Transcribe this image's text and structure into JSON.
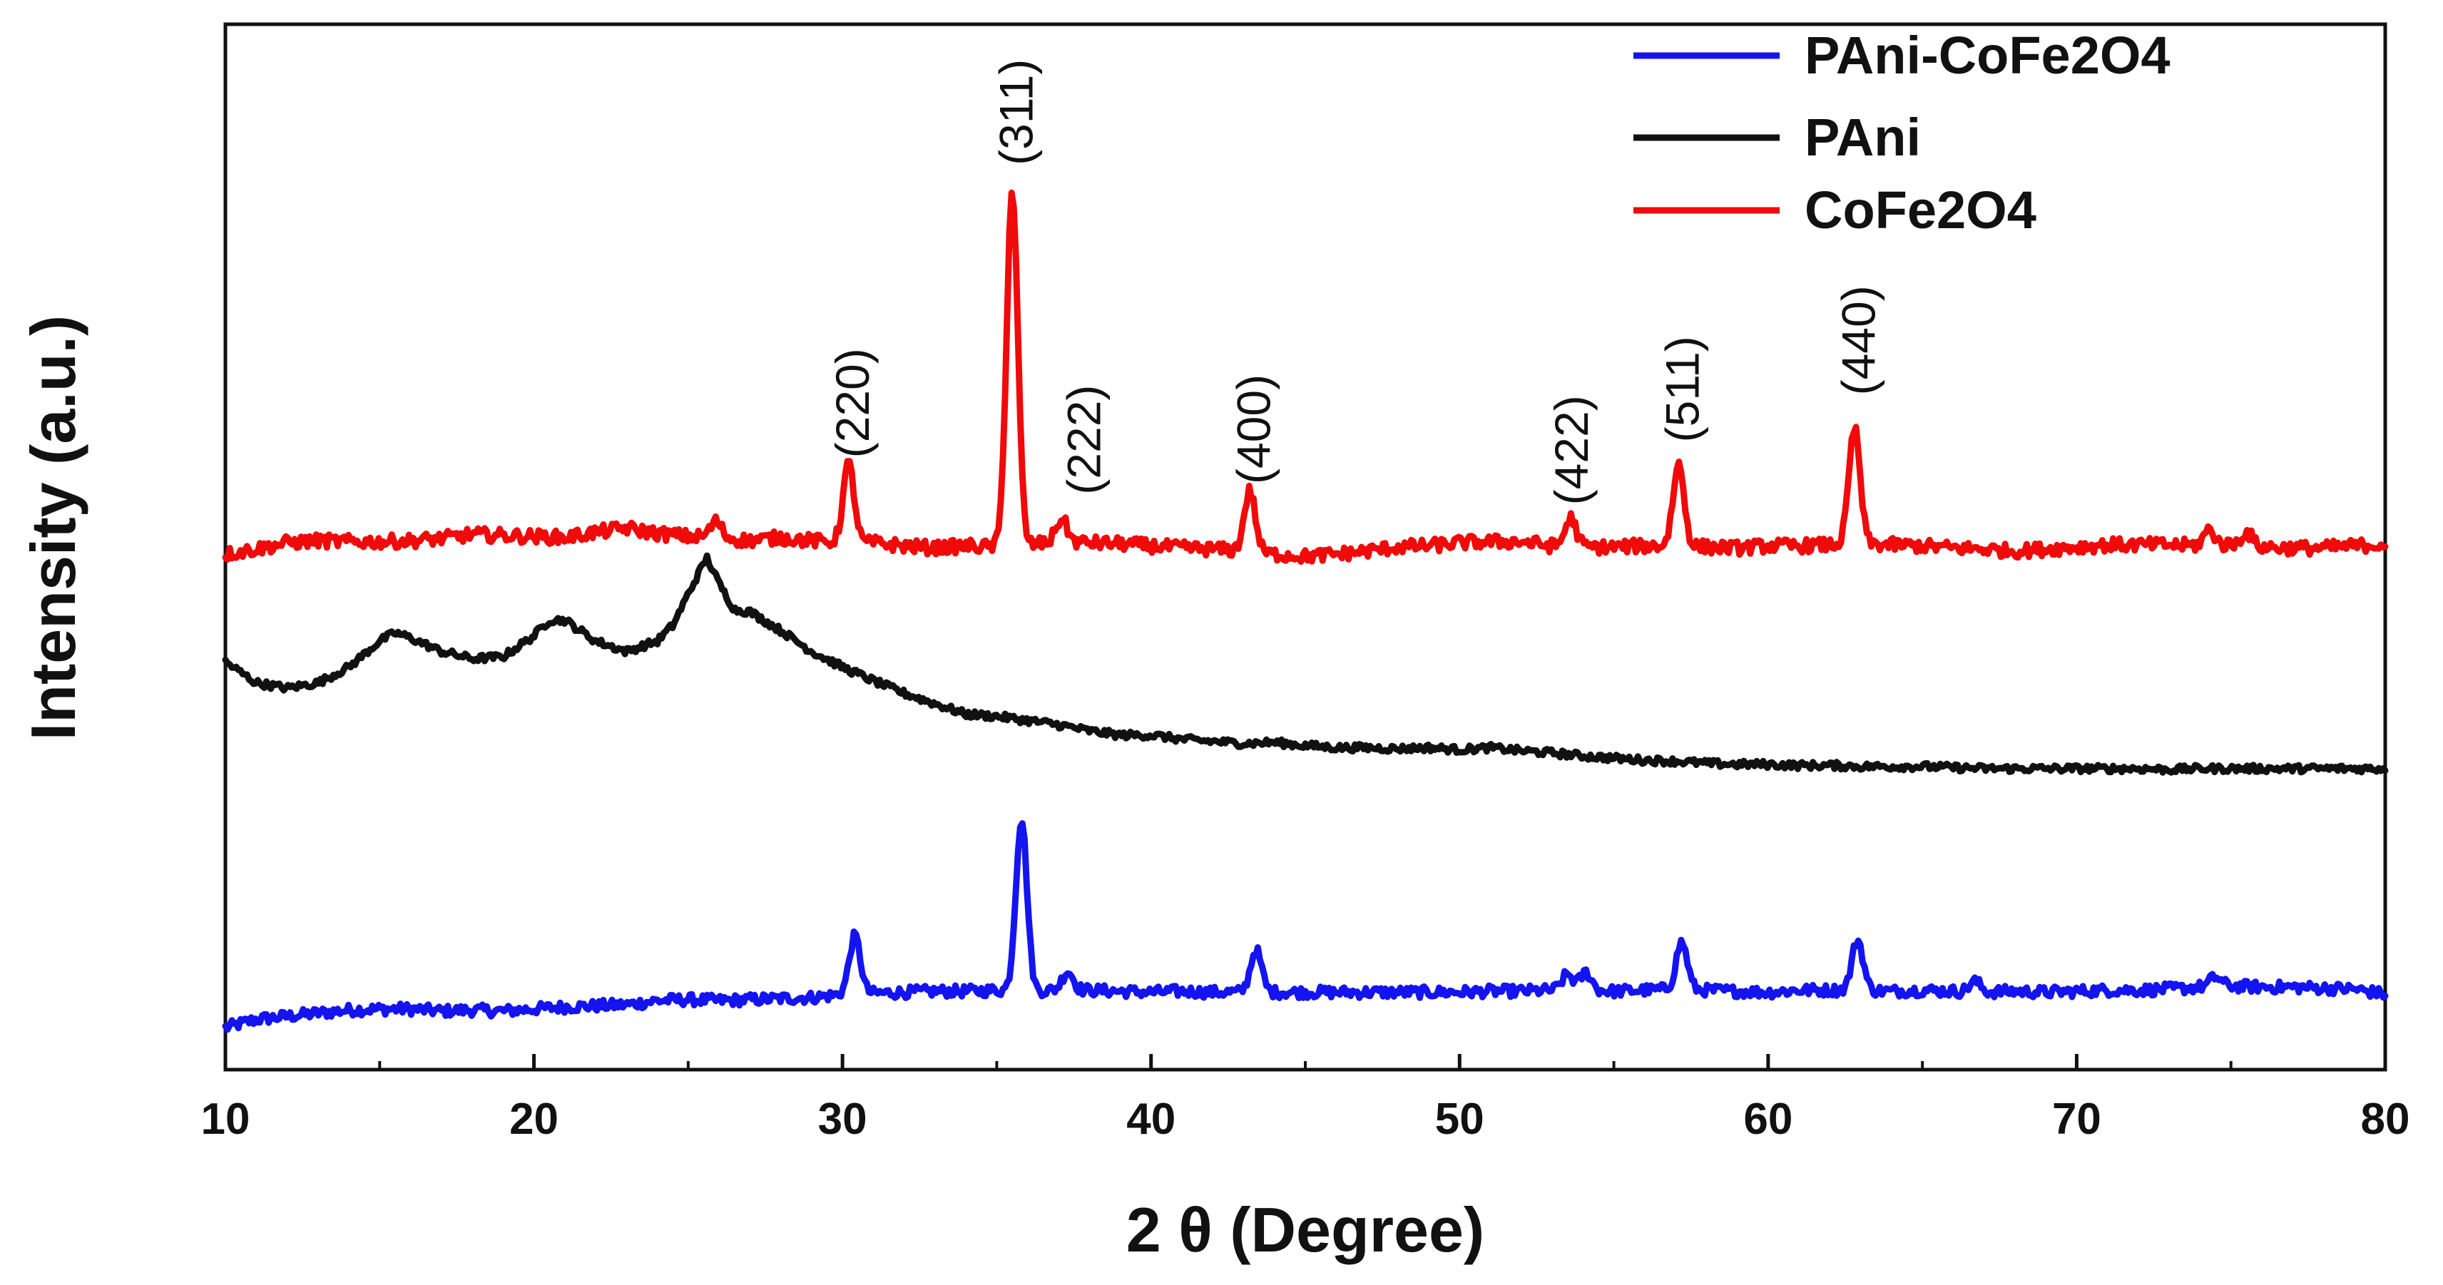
{
  "chart_data": {
    "type": "line",
    "title": "",
    "xlabel": "2 θ (Degree)",
    "ylabel": "Intensity (a.u.)",
    "xlim": [
      10,
      80
    ],
    "ylim": [
      0,
      100
    ],
    "x_ticks": [
      10,
      20,
      30,
      40,
      50,
      60,
      70,
      80
    ],
    "y_ticks": [],
    "grid": false,
    "legend_position": "top-right",
    "series": [
      {
        "name": "PAni-CoFe2O4",
        "color": "#1414f0",
        "peaks": [
          [
            30.4,
            5.5
          ],
          [
            35.8,
            16.5
          ],
          [
            37.3,
            1.8
          ],
          [
            43.4,
            4.0
          ],
          [
            53.5,
            1.5
          ],
          [
            54.1,
            1.7
          ],
          [
            57.2,
            4.5
          ],
          [
            62.9,
            4.8
          ],
          [
            66.7,
            1.0
          ],
          [
            74.5,
            0.9
          ]
        ],
        "values": [
          [
            10,
            4.0
          ],
          [
            11,
            4.8
          ],
          [
            12,
            5.1
          ],
          [
            13,
            5.4
          ],
          [
            14,
            5.7
          ],
          [
            15,
            5.8
          ],
          [
            16,
            5.8
          ],
          [
            17,
            5.6
          ],
          [
            18,
            5.7
          ],
          [
            19,
            5.6
          ],
          [
            20,
            5.8
          ],
          [
            21,
            6.0
          ],
          [
            22,
            6.1
          ],
          [
            23,
            6.2
          ],
          [
            24,
            6.6
          ],
          [
            25,
            6.7
          ],
          [
            26,
            6.6
          ],
          [
            27,
            6.7
          ],
          [
            28,
            6.8
          ],
          [
            29,
            6.9
          ],
          [
            30,
            7.2
          ],
          [
            31,
            7.3
          ],
          [
            32,
            7.4
          ],
          [
            33,
            7.5
          ],
          [
            34,
            7.5
          ],
          [
            35,
            7.6
          ],
          [
            36,
            7.5
          ],
          [
            37,
            7.6
          ],
          [
            38,
            7.6
          ],
          [
            39,
            7.5
          ],
          [
            40,
            7.4
          ],
          [
            41,
            7.5
          ],
          [
            42,
            7.4
          ],
          [
            43,
            7.4
          ],
          [
            44,
            7.4
          ],
          [
            45,
            7.4
          ],
          [
            46,
            7.4
          ],
          [
            47,
            7.4
          ],
          [
            48,
            7.4
          ],
          [
            49,
            7.4
          ],
          [
            50,
            7.4
          ],
          [
            51,
            7.5
          ],
          [
            52,
            7.5
          ],
          [
            53,
            7.6
          ],
          [
            54,
            7.6
          ],
          [
            55,
            7.5
          ],
          [
            56,
            7.6
          ],
          [
            57,
            7.7
          ],
          [
            58,
            7.6
          ],
          [
            59,
            7.5
          ],
          [
            60,
            7.4
          ],
          [
            61,
            7.6
          ],
          [
            62,
            7.6
          ],
          [
            63,
            7.6
          ],
          [
            64,
            7.5
          ],
          [
            65,
            7.6
          ],
          [
            66,
            7.5
          ],
          [
            67,
            7.4
          ],
          [
            68,
            7.5
          ],
          [
            69,
            7.4
          ],
          [
            70,
            7.5
          ],
          [
            71,
            7.6
          ],
          [
            72,
            7.6
          ],
          [
            73,
            7.7
          ],
          [
            74,
            7.9
          ],
          [
            75,
            8.0
          ],
          [
            76,
            7.9
          ],
          [
            77,
            7.9
          ],
          [
            78,
            7.8
          ],
          [
            79,
            7.7
          ],
          [
            80,
            7.2
          ]
        ]
      },
      {
        "name": "PAni",
        "color": "#111111",
        "peaks": [],
        "values": [
          [
            10,
            39.0
          ],
          [
            10.5,
            38.0
          ],
          [
            11,
            37.0
          ],
          [
            12,
            36.5
          ],
          [
            13,
            37.0
          ],
          [
            14,
            38.5
          ],
          [
            15,
            41.0
          ],
          [
            15.5,
            41.8
          ],
          [
            16,
            41.3
          ],
          [
            17,
            40.0
          ],
          [
            18,
            39.3
          ],
          [
            19,
            39.5
          ],
          [
            20,
            41.5
          ],
          [
            20.5,
            43.0
          ],
          [
            21,
            43.0
          ],
          [
            21.5,
            42.0
          ],
          [
            22,
            41.0
          ],
          [
            23,
            40.0
          ],
          [
            24,
            41.0
          ],
          [
            24.5,
            42.5
          ],
          [
            25,
            45.5
          ],
          [
            25.6,
            49.0
          ],
          [
            26,
            46.5
          ],
          [
            26.5,
            44.0
          ],
          [
            27,
            43.8
          ],
          [
            28,
            42.0
          ],
          [
            29,
            40.0
          ],
          [
            30,
            38.5
          ],
          [
            31,
            37.2
          ],
          [
            32,
            36.0
          ],
          [
            33,
            35.0
          ],
          [
            34,
            34.0
          ],
          [
            35,
            33.8
          ],
          [
            36,
            33.4
          ],
          [
            37,
            33.0
          ],
          [
            38,
            32.4
          ],
          [
            39,
            32.0
          ],
          [
            40,
            32.0
          ],
          [
            41,
            31.6
          ],
          [
            42,
            31.4
          ],
          [
            43,
            31.2
          ],
          [
            44,
            31.3
          ],
          [
            45,
            31.0
          ],
          [
            46,
            30.8
          ],
          [
            47,
            30.8
          ],
          [
            48,
            30.7
          ],
          [
            49,
            30.8
          ],
          [
            50,
            30.6
          ],
          [
            51,
            30.8
          ],
          [
            52,
            30.5
          ],
          [
            53,
            30.3
          ],
          [
            54,
            30.0
          ],
          [
            55,
            29.8
          ],
          [
            56,
            29.6
          ],
          [
            57,
            29.5
          ],
          [
            58,
            29.3
          ],
          [
            59,
            29.2
          ],
          [
            60,
            29.2
          ],
          [
            61,
            29.1
          ],
          [
            62,
            29.1
          ],
          [
            63,
            29.0
          ],
          [
            64,
            29.0
          ],
          [
            65,
            29.0
          ],
          [
            66,
            28.9
          ],
          [
            67,
            28.8
          ],
          [
            68,
            28.8
          ],
          [
            69,
            28.8
          ],
          [
            70,
            28.8
          ],
          [
            71,
            28.8
          ],
          [
            72,
            28.8
          ],
          [
            73,
            28.7
          ],
          [
            74,
            28.8
          ],
          [
            75,
            28.8
          ],
          [
            76,
            28.8
          ],
          [
            77,
            28.8
          ],
          [
            78,
            28.8
          ],
          [
            79,
            28.8
          ],
          [
            80,
            28.8
          ]
        ]
      },
      {
        "name": "CoFe2O4",
        "color": "#f00a0a",
        "peaks": [
          [
            25.9,
            1.5
          ],
          [
            30.2,
            7.5
          ],
          [
            35.5,
            34.0
          ],
          [
            37.1,
            2.2
          ],
          [
            43.2,
            5.8
          ],
          [
            53.6,
            2.7
          ],
          [
            57.1,
            7.8
          ],
          [
            62.8,
            11.0
          ],
          [
            74.3,
            1.5
          ],
          [
            75.5,
            1.3
          ]
        ],
        "values": [
          [
            10,
            49.3
          ],
          [
            11,
            49.8
          ],
          [
            12,
            50.4
          ],
          [
            13,
            50.6
          ],
          [
            14,
            50.5
          ],
          [
            15,
            50.5
          ],
          [
            16,
            50.6
          ],
          [
            17,
            50.8
          ],
          [
            18,
            51.2
          ],
          [
            19,
            51.1
          ],
          [
            20,
            51.0
          ],
          [
            21,
            50.9
          ],
          [
            22,
            51.4
          ],
          [
            23,
            51.8
          ],
          [
            24,
            51.3
          ],
          [
            25,
            51.0
          ],
          [
            26,
            50.9
          ],
          [
            27,
            50.6
          ],
          [
            28,
            50.9
          ],
          [
            29,
            50.6
          ],
          [
            30,
            50.4
          ],
          [
            31,
            50.4
          ],
          [
            32,
            50.1
          ],
          [
            33,
            49.9
          ],
          [
            34,
            50.1
          ],
          [
            35,
            50.0
          ],
          [
            36,
            50.2
          ],
          [
            37,
            50.5
          ],
          [
            38,
            50.4
          ],
          [
            39,
            50.3
          ],
          [
            40,
            50.1
          ],
          [
            41,
            49.9
          ],
          [
            42,
            49.8
          ],
          [
            43,
            49.6
          ],
          [
            44,
            49.3
          ],
          [
            45,
            49.1
          ],
          [
            46,
            49.3
          ],
          [
            47,
            49.6
          ],
          [
            48,
            50.0
          ],
          [
            49,
            50.1
          ],
          [
            50,
            50.4
          ],
          [
            51,
            50.5
          ],
          [
            52,
            50.5
          ],
          [
            53,
            50.1
          ],
          [
            54,
            50.0
          ],
          [
            55,
            50.0
          ],
          [
            56,
            50.1
          ],
          [
            57,
            50.1
          ],
          [
            58,
            50.0
          ],
          [
            59,
            49.9
          ],
          [
            60,
            50.1
          ],
          [
            61,
            50.1
          ],
          [
            62,
            50.2
          ],
          [
            63,
            50.3
          ],
          [
            64,
            50.2
          ],
          [
            65,
            50.1
          ],
          [
            66,
            49.9
          ],
          [
            67,
            49.8
          ],
          [
            68,
            49.6
          ],
          [
            69,
            49.8
          ],
          [
            70,
            50.0
          ],
          [
            71,
            50.2
          ],
          [
            72,
            50.2
          ],
          [
            73,
            50.2
          ],
          [
            74,
            50.1
          ],
          [
            75,
            50.2
          ],
          [
            76,
            50.0
          ],
          [
            77,
            49.9
          ],
          [
            78,
            49.9
          ],
          [
            79,
            50.1
          ],
          [
            80,
            50.3
          ]
        ]
      }
    ],
    "annotations": [
      {
        "label": "(220)",
        "x": 30.3,
        "y": 58.5
      },
      {
        "label": "(311)",
        "x": 35.6,
        "y": 86.5
      },
      {
        "label": "(222)",
        "x": 37.8,
        "y": 55.0
      },
      {
        "label": "(400)",
        "x": 43.3,
        "y": 56.0
      },
      {
        "label": "(422)",
        "x": 53.6,
        "y": 54.0
      },
      {
        "label": "(511)",
        "x": 57.2,
        "y": 60.0
      },
      {
        "label": "(440)",
        "x": 62.9,
        "y": 64.5
      }
    ]
  }
}
